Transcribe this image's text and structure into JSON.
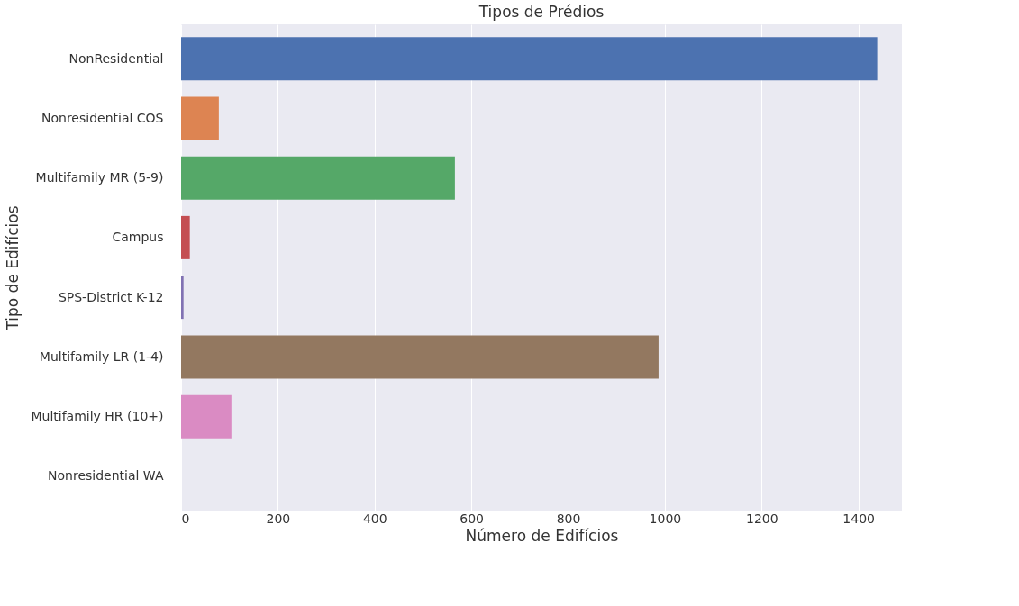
{
  "chart_data": {
    "type": "bar",
    "orientation": "horizontal",
    "title": "Tipos de Prédios",
    "xlabel": "Número de Edifícios",
    "ylabel": "Tipo de Edifícios",
    "categories": [
      "NonResidential",
      "Nonresidential COS",
      "Multifamily MR (5-9)",
      "Campus",
      "SPS-District K-12",
      "Multifamily LR (1-4)",
      "Multifamily HR (10+)",
      "Nonresidential WA"
    ],
    "values": [
      1439,
      78,
      566,
      18,
      5,
      987,
      104,
      0
    ],
    "colors": [
      "#4c72b0",
      "#dd8452",
      "#55a868",
      "#c44e52",
      "#8172b3",
      "#937860",
      "#da8bc3",
      "#8c8c8c"
    ],
    "xlim": [
      0,
      1490
    ],
    "xticks": [
      0,
      200,
      400,
      600,
      800,
      1000,
      1200,
      1400
    ],
    "grid": "x"
  }
}
